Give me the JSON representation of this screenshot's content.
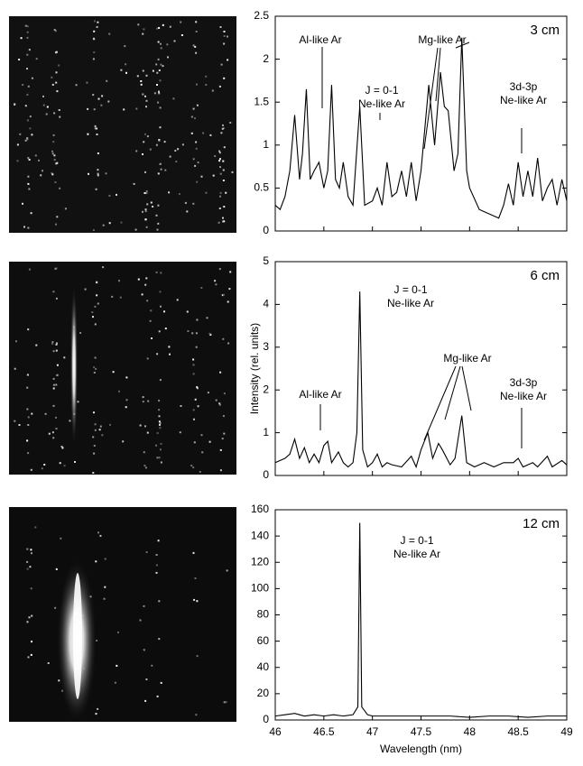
{
  "chart_data": [
    {
      "type": "line",
      "label": "3 cm",
      "color": "#000000",
      "xtick_labels": false,
      "xlim": [
        46,
        49
      ],
      "xticks": [
        46,
        46.5,
        47,
        47.5,
        48,
        48.5,
        49
      ],
      "ylim": [
        0,
        2.5
      ],
      "yticks": [
        0,
        0.5,
        1,
        1.5,
        2,
        2.5
      ],
      "x": [
        46.0,
        46.05,
        46.1,
        46.15,
        46.2,
        46.25,
        46.28,
        46.32,
        46.36,
        46.4,
        46.45,
        46.5,
        46.54,
        46.58,
        46.62,
        46.66,
        46.7,
        46.75,
        46.8,
        46.87,
        46.92,
        47.0,
        47.05,
        47.1,
        47.15,
        47.2,
        47.25,
        47.3,
        47.35,
        47.4,
        47.45,
        47.5,
        47.58,
        47.64,
        47.7,
        47.74,
        47.78,
        47.84,
        47.88,
        47.92,
        47.97,
        48.0,
        48.1,
        48.2,
        48.3,
        48.35,
        48.4,
        48.45,
        48.5,
        48.55,
        48.6,
        48.65,
        48.7,
        48.75,
        48.8,
        48.85,
        48.9,
        48.95,
        49.0
      ],
      "values": [
        0.3,
        0.25,
        0.4,
        0.7,
        1.35,
        0.6,
        0.9,
        1.65,
        0.6,
        0.7,
        0.8,
        0.5,
        0.7,
        1.7,
        0.6,
        0.5,
        0.8,
        0.4,
        0.3,
        1.45,
        0.3,
        0.35,
        0.5,
        0.3,
        0.8,
        0.4,
        0.45,
        0.7,
        0.4,
        0.8,
        0.35,
        0.7,
        1.7,
        1.0,
        1.85,
        1.45,
        1.4,
        0.7,
        0.9,
        2.25,
        0.7,
        0.5,
        0.25,
        0.2,
        0.15,
        0.3,
        0.55,
        0.3,
        0.8,
        0.4,
        0.7,
        0.4,
        0.85,
        0.35,
        0.5,
        0.6,
        0.3,
        0.6,
        0.35
      ],
      "annotations": [
        {
          "lines": [
            "Al-like Ar"
          ]
        },
        {
          "lines": [
            "J = 0-1",
            "Ne-like Ar"
          ]
        },
        {
          "lines": [
            "Mg-like Ar"
          ]
        },
        {
          "lines": [
            "3d-3p",
            "Ne-like Ar"
          ]
        }
      ]
    },
    {
      "type": "line",
      "label": "6 cm",
      "color": "#000000",
      "xtick_labels": false,
      "ylabel": "Intensity (rel. units)",
      "xlim": [
        46,
        49
      ],
      "xticks": [
        46,
        46.5,
        47,
        47.5,
        48,
        48.5,
        49
      ],
      "ylim": [
        0,
        5
      ],
      "yticks": [
        0,
        1,
        2,
        3,
        4,
        5
      ],
      "x": [
        46.0,
        46.05,
        46.1,
        46.15,
        46.2,
        46.25,
        46.3,
        46.35,
        46.4,
        46.45,
        46.5,
        46.54,
        46.58,
        46.65,
        46.7,
        46.75,
        46.8,
        46.84,
        46.87,
        46.9,
        46.95,
        47.0,
        47.05,
        47.1,
        47.15,
        47.2,
        47.3,
        47.4,
        47.45,
        47.5,
        47.57,
        47.62,
        47.68,
        47.72,
        47.8,
        47.85,
        47.92,
        47.97,
        48.05,
        48.15,
        48.25,
        48.35,
        48.45,
        48.5,
        48.55,
        48.65,
        48.7,
        48.8,
        48.85,
        48.95,
        49.0
      ],
      "values": [
        0.3,
        0.35,
        0.4,
        0.5,
        0.85,
        0.4,
        0.65,
        0.3,
        0.5,
        0.3,
        0.7,
        0.8,
        0.3,
        0.55,
        0.3,
        0.2,
        0.3,
        1.0,
        4.3,
        0.6,
        0.2,
        0.3,
        0.5,
        0.2,
        0.3,
        0.25,
        0.2,
        0.45,
        0.2,
        0.6,
        1.0,
        0.4,
        0.75,
        0.6,
        0.25,
        0.4,
        1.4,
        0.3,
        0.2,
        0.3,
        0.2,
        0.3,
        0.3,
        0.4,
        0.2,
        0.3,
        0.2,
        0.45,
        0.2,
        0.35,
        0.25
      ],
      "annotations": [
        {
          "lines": [
            "J = 0-1",
            "Ne-like Ar"
          ]
        },
        {
          "lines": [
            "Al-like Ar"
          ]
        },
        {
          "lines": [
            "Mg-like Ar"
          ]
        },
        {
          "lines": [
            "3d-3p",
            "Ne-like Ar"
          ]
        }
      ]
    },
    {
      "type": "line",
      "label": "12 cm",
      "color": "#000000",
      "xtick_labels": true,
      "xlabel": "Wavelength (nm)",
      "xlim": [
        46,
        49
      ],
      "xticks": [
        46,
        46.5,
        47,
        47.5,
        48,
        48.5,
        49
      ],
      "ylim": [
        0,
        160
      ],
      "yticks": [
        0,
        20,
        40,
        60,
        80,
        100,
        120,
        140,
        160
      ],
      "x": [
        46.0,
        46.1,
        46.2,
        46.3,
        46.4,
        46.5,
        46.6,
        46.7,
        46.8,
        46.85,
        46.87,
        46.89,
        46.95,
        47.0,
        47.2,
        47.4,
        47.6,
        47.8,
        48.0,
        48.2,
        48.4,
        48.6,
        48.8,
        49.0
      ],
      "values": [
        3,
        4,
        5,
        3,
        4,
        3,
        4,
        3,
        4,
        10,
        150,
        10,
        4,
        3,
        3,
        3,
        3,
        3,
        2,
        3,
        3,
        2,
        3,
        3
      ],
      "annotations": [
        {
          "lines": [
            "J = 0-1",
            "Ne-like Ar"
          ]
        }
      ]
    }
  ]
}
